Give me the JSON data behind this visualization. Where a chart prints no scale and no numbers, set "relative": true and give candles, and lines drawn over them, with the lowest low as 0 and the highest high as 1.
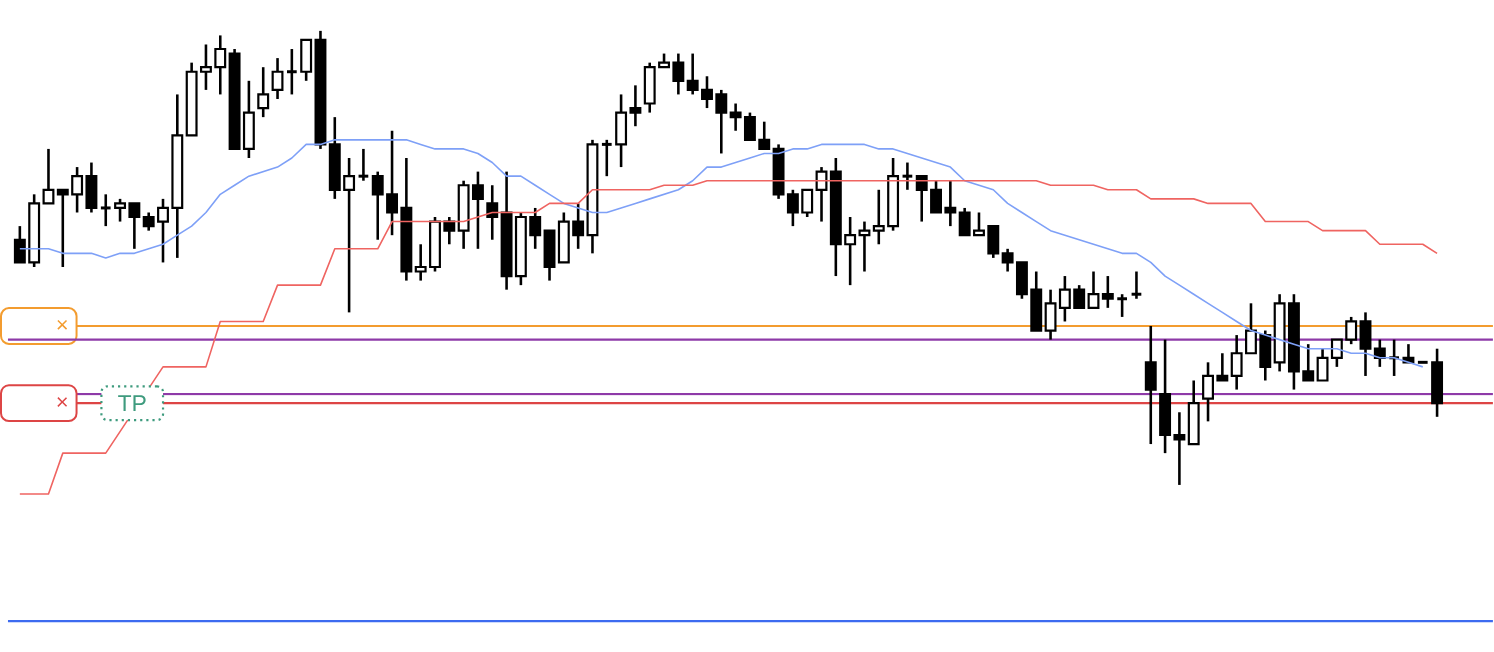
{
  "chart_data": {
    "type": "candlestick",
    "relative": true,
    "color": "#000000",
    "categories": [
      null,
      null,
      null,
      null,
      null,
      null,
      null,
      null,
      null,
      null,
      null,
      null,
      null,
      null,
      null,
      null,
      null,
      null,
      null,
      null,
      null,
      null,
      null,
      null,
      null,
      null,
      null,
      null,
      null,
      null,
      null,
      null,
      null,
      null,
      null,
      null,
      null,
      null,
      null,
      null,
      null,
      null,
      null,
      null,
      null,
      null,
      null,
      null,
      null,
      null,
      null,
      null,
      null,
      null,
      null,
      null,
      null,
      null,
      null,
      null,
      null,
      null,
      null,
      null,
      null,
      null,
      null,
      null,
      null,
      null,
      null,
      null,
      null,
      null,
      null,
      null,
      null,
      null,
      null,
      null,
      null,
      null,
      null,
      null,
      null,
      null,
      null,
      null,
      null,
      null,
      null,
      null,
      null,
      null,
      null,
      null,
      null,
      null,
      null,
      null
    ],
    "ohlc": [
      [
        0.54,
        0.57,
        0.49,
        0.49
      ],
      [
        0.49,
        0.64,
        0.48,
        0.62
      ],
      [
        0.62,
        0.74,
        0.62,
        0.65
      ],
      [
        0.65,
        0.65,
        0.48,
        0.64
      ],
      [
        0.64,
        0.7,
        0.6,
        0.68
      ],
      [
        0.68,
        0.71,
        0.6,
        0.61
      ],
      [
        0.61,
        0.64,
        0.57,
        0.61
      ],
      [
        0.61,
        0.63,
        0.58,
        0.62
      ],
      [
        0.62,
        0.62,
        0.52,
        0.59
      ],
      [
        0.59,
        0.6,
        0.56,
        0.57
      ],
      [
        0.58,
        0.63,
        0.49,
        0.61
      ],
      [
        0.61,
        0.86,
        0.5,
        0.77
      ],
      [
        0.77,
        0.93,
        0.77,
        0.91
      ],
      [
        0.91,
        0.97,
        0.87,
        0.92
      ],
      [
        0.92,
        0.99,
        0.86,
        0.96
      ],
      [
        0.95,
        0.96,
        0.74,
        0.74
      ],
      [
        0.74,
        0.89,
        0.72,
        0.82
      ],
      [
        0.83,
        0.92,
        0.81,
        0.86
      ],
      [
        0.87,
        0.94,
        0.85,
        0.91
      ],
      [
        0.91,
        0.96,
        0.86,
        0.91
      ],
      [
        0.91,
        0.98,
        0.89,
        0.98
      ],
      [
        0.98,
        1.0,
        0.74,
        0.75
      ],
      [
        0.75,
        0.81,
        0.63,
        0.65
      ],
      [
        0.65,
        0.72,
        0.38,
        0.68
      ],
      [
        0.68,
        0.74,
        0.67,
        0.68
      ],
      [
        0.68,
        0.69,
        0.54,
        0.64
      ],
      [
        0.64,
        0.78,
        0.55,
        0.6
      ],
      [
        0.61,
        0.72,
        0.45,
        0.47
      ],
      [
        0.47,
        0.53,
        0.45,
        0.48
      ],
      [
        0.48,
        0.59,
        0.47,
        0.58
      ],
      [
        0.58,
        0.59,
        0.53,
        0.56
      ],
      [
        0.56,
        0.67,
        0.52,
        0.66
      ],
      [
        0.66,
        0.69,
        0.52,
        0.63
      ],
      [
        0.62,
        0.66,
        0.54,
        0.59
      ],
      [
        0.6,
        0.69,
        0.43,
        0.46
      ],
      [
        0.46,
        0.6,
        0.44,
        0.59
      ],
      [
        0.59,
        0.61,
        0.52,
        0.55
      ],
      [
        0.56,
        0.56,
        0.45,
        0.48
      ],
      [
        0.49,
        0.6,
        0.49,
        0.58
      ],
      [
        0.58,
        0.62,
        0.52,
        0.55
      ],
      [
        0.55,
        0.76,
        0.51,
        0.75
      ],
      [
        0.75,
        0.76,
        0.68,
        0.75
      ],
      [
        0.75,
        0.86,
        0.7,
        0.82
      ],
      [
        0.83,
        0.88,
        0.79,
        0.82
      ],
      [
        0.84,
        0.93,
        0.82,
        0.92
      ],
      [
        0.92,
        0.95,
        0.92,
        0.93
      ],
      [
        0.93,
        0.95,
        0.86,
        0.89
      ],
      [
        0.89,
        0.95,
        0.86,
        0.87
      ],
      [
        0.87,
        0.9,
        0.83,
        0.85
      ],
      [
        0.86,
        0.87,
        0.73,
        0.82
      ],
      [
        0.82,
        0.84,
        0.78,
        0.81
      ],
      [
        0.81,
        0.82,
        0.76,
        0.76
      ],
      [
        0.76,
        0.8,
        0.74,
        0.74
      ],
      [
        0.74,
        0.75,
        0.63,
        0.64
      ],
      [
        0.64,
        0.65,
        0.57,
        0.6
      ],
      [
        0.6,
        0.65,
        0.59,
        0.65
      ],
      [
        0.65,
        0.7,
        0.58,
        0.69
      ],
      [
        0.69,
        0.72,
        0.46,
        0.53
      ],
      [
        0.53,
        0.59,
        0.44,
        0.55
      ],
      [
        0.55,
        0.58,
        0.47,
        0.56
      ],
      [
        0.56,
        0.65,
        0.53,
        0.57
      ],
      [
        0.57,
        0.72,
        0.56,
        0.68
      ],
      [
        0.68,
        0.71,
        0.65,
        0.68
      ],
      [
        0.68,
        0.68,
        0.58,
        0.65
      ],
      [
        0.65,
        0.67,
        0.6,
        0.6
      ],
      [
        0.61,
        0.67,
        0.57,
        0.6
      ],
      [
        0.6,
        0.61,
        0.55,
        0.55
      ],
      [
        0.55,
        0.6,
        0.55,
        0.56
      ],
      [
        0.57,
        0.57,
        0.5,
        0.51
      ],
      [
        0.51,
        0.52,
        0.47,
        0.49
      ],
      [
        0.49,
        0.49,
        0.41,
        0.42
      ],
      [
        0.43,
        0.47,
        0.34,
        0.34
      ],
      [
        0.34,
        0.43,
        0.32,
        0.4
      ],
      [
        0.39,
        0.46,
        0.36,
        0.43
      ],
      [
        0.43,
        0.44,
        0.39,
        0.39
      ],
      [
        0.39,
        0.47,
        0.39,
        0.42
      ],
      [
        0.42,
        0.46,
        0.39,
        0.41
      ],
      [
        0.41,
        0.42,
        0.37,
        0.41
      ],
      [
        0.42,
        0.47,
        0.41,
        0.42
      ],
      [
        0.27,
        0.35,
        0.09,
        0.21
      ],
      [
        0.2,
        0.32,
        0.07,
        0.11
      ],
      [
        0.11,
        0.16,
        0,
        0.1
      ],
      [
        0.09,
        0.23,
        0.09,
        0.18
      ],
      [
        0.19,
        0.27,
        0.14,
        0.24
      ],
      [
        0.24,
        0.29,
        0.23,
        0.23
      ],
      [
        0.24,
        0.33,
        0.21,
        0.29
      ],
      [
        0.29,
        0.4,
        0.29,
        0.34
      ],
      [
        0.33,
        0.34,
        0.23,
        0.26
      ],
      [
        0.27,
        0.42,
        0.25,
        0.4
      ],
      [
        0.4,
        0.42,
        0.21,
        0.25
      ],
      [
        0.25,
        0.31,
        0.23,
        0.23
      ],
      [
        0.23,
        0.3,
        0.23,
        0.28
      ],
      [
        0.28,
        0.32,
        0.26,
        0.32
      ],
      [
        0.32,
        0.37,
        0.31,
        0.36
      ],
      [
        0.36,
        0.38,
        0.24,
        0.3
      ],
      [
        0.3,
        0.32,
        0.26,
        0.28
      ],
      [
        0.28,
        0.32,
        0.24,
        0.28
      ],
      [
        0.28,
        0.31,
        0.27,
        0.27
      ],
      [
        0.27,
        0.27,
        0.27,
        0.27
      ],
      [
        0.27,
        0.3,
        0.15,
        0.18
      ]
    ],
    "series": [
      {
        "type": "line",
        "color": "#7ea0f7",
        "values": [
          0.52,
          0.52,
          0.52,
          0.51,
          0.51,
          0.51,
          0.5,
          0.51,
          0.51,
          0.52,
          0.53,
          0.55,
          0.57,
          0.6,
          0.64,
          0.66,
          0.68,
          0.69,
          0.7,
          0.72,
          0.75,
          0.75,
          0.76,
          0.76,
          0.76,
          0.76,
          0.76,
          0.76,
          0.75,
          0.74,
          0.74,
          0.74,
          0.73,
          0.71,
          0.68,
          0.68,
          0.66,
          0.64,
          0.62,
          0.61,
          0.6,
          0.6,
          0.61,
          0.62,
          0.63,
          0.64,
          0.65,
          0.67,
          0.7,
          0.7,
          0.71,
          0.72,
          0.73,
          0.73,
          0.74,
          0.74,
          0.75,
          0.75,
          0.75,
          0.75,
          0.74,
          0.74,
          0.73,
          0.72,
          0.71,
          0.7,
          0.67,
          0.66,
          0.65,
          0.62,
          0.6,
          0.58,
          0.56,
          0.55,
          0.54,
          0.53,
          0.52,
          0.51,
          0.51,
          0.49,
          0.46,
          0.44,
          0.42,
          0.4,
          0.38,
          0.36,
          0.34,
          0.33,
          0.32,
          0.31,
          0.3,
          0.3,
          0.3,
          0.29,
          0.29,
          0.28,
          0.28,
          0.27,
          0.26,
          null
        ]
      },
      {
        "type": "line",
        "color": "#ef6461",
        "values": [
          -0.02,
          -0.02,
          -0.02,
          0.07,
          0.07,
          0.07,
          0.07,
          null,
          null,
          null,
          0.26,
          0.26,
          0.26,
          0.26,
          0.36,
          0.36,
          0.36,
          0.36,
          0.44,
          0.44,
          0.44,
          0.44,
          0.52,
          0.52,
          0.52,
          0.52,
          0.58,
          0.58,
          0.58,
          0.58,
          0.58,
          0.58,
          0.59,
          0.6,
          0.6,
          0.6,
          0.6,
          0.62,
          0.62,
          0.62,
          0.65,
          0.65,
          0.65,
          0.65,
          0.65,
          0.66,
          0.66,
          0.66,
          0.67,
          0.67,
          0.67,
          0.67,
          0.67,
          0.67,
          0.67,
          0.67,
          0.67,
          0.67,
          0.67,
          0.67,
          0.67,
          0.67,
          0.67,
          0.67,
          0.67,
          0.67,
          0.67,
          0.67,
          0.67,
          0.67,
          0.67,
          0.67,
          0.66,
          0.66,
          0.66,
          0.66,
          0.65,
          0.65,
          0.65,
          0.63,
          0.63,
          0.63,
          0.63,
          0.62,
          0.62,
          0.62,
          0.62,
          0.58,
          0.58,
          0.58,
          0.58,
          0.56,
          0.56,
          0.56,
          0.56,
          0.53,
          0.53,
          0.53,
          0.53,
          0.51
        ]
      }
    ],
    "ref_lines": [
      {
        "axis": "y",
        "value": 0.35,
        "color": "#f39c2f",
        "label": "×"
      },
      {
        "axis": "y",
        "value": 0.32,
        "color": "#8e3aa8"
      },
      {
        "axis": "y",
        "value": 0.2,
        "color": "#8e3aa8"
      },
      {
        "axis": "y",
        "value": 0.18,
        "color": "#dd4545",
        "label": "×"
      },
      {
        "axis": "y",
        "value": -0.3,
        "color": "#3d6bf0"
      }
    ],
    "annotations": [
      {
        "text": "TP",
        "y": 0.18
      }
    ]
  }
}
